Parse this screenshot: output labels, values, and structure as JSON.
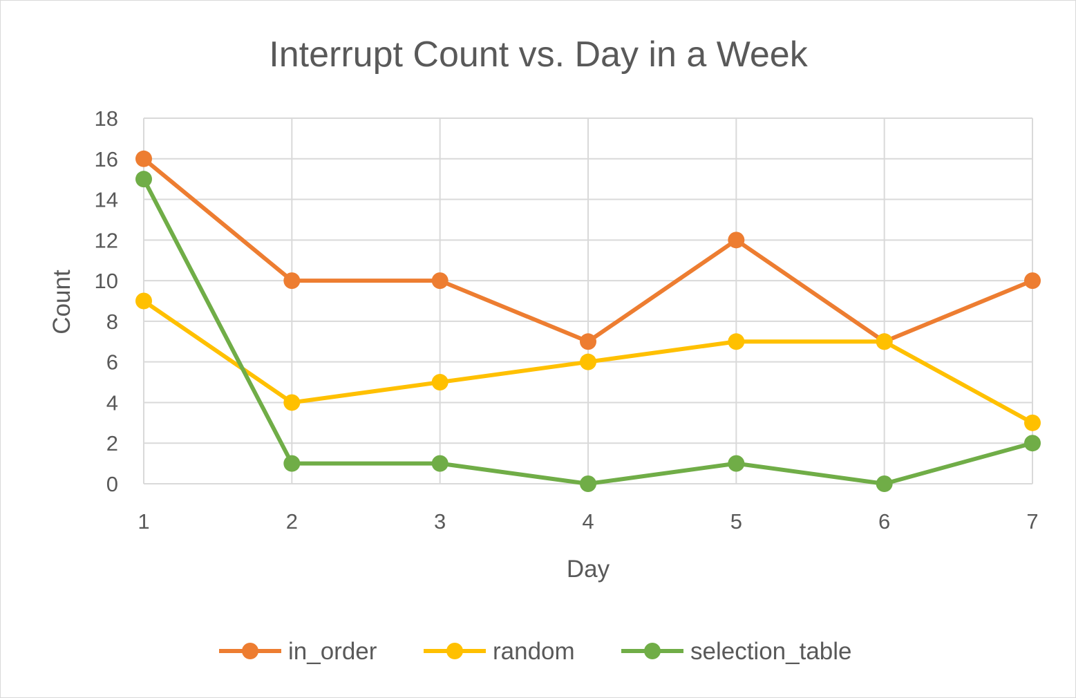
{
  "chart_data": {
    "type": "line",
    "title": "Interrupt Count vs. Day in a Week",
    "xlabel": "Day",
    "ylabel": "Count",
    "x": [
      1,
      2,
      3,
      4,
      5,
      6,
      7
    ],
    "ylim": [
      0,
      18
    ],
    "yticks": [
      0,
      2,
      4,
      6,
      8,
      10,
      12,
      14,
      16,
      18
    ],
    "grid": true,
    "legend_position": "bottom",
    "series": [
      {
        "name": "in_order",
        "color": "#ED7D31",
        "values": [
          16,
          10,
          10,
          7,
          12,
          7,
          10
        ]
      },
      {
        "name": "random",
        "color": "#FFC000",
        "values": [
          9,
          4,
          5,
          6,
          7,
          7,
          3
        ]
      },
      {
        "name": "selection_table",
        "color": "#70AD47",
        "values": [
          15,
          1,
          1,
          0,
          1,
          0,
          2
        ]
      }
    ]
  }
}
